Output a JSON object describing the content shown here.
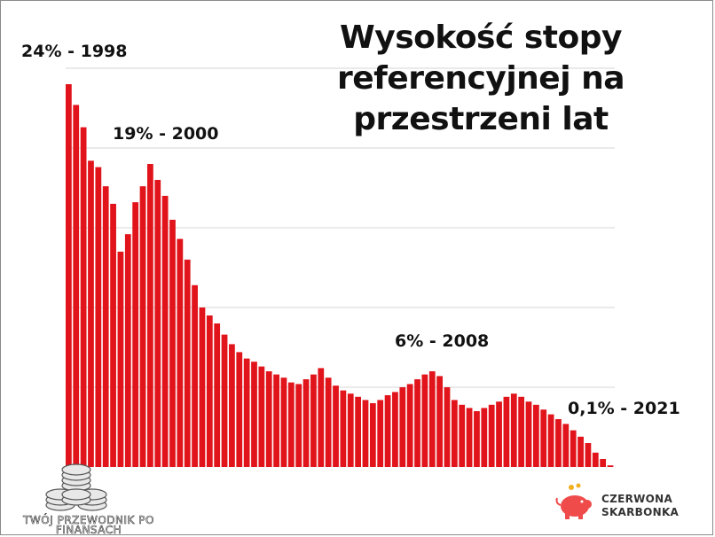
{
  "title_lines": [
    "Wysokość stopy",
    "referencyjnej na",
    "przestrzeni lat"
  ],
  "brand": {
    "line1": "CZERWONA",
    "line2": "SKARBONKA",
    "icon": "piggy-bank-icon"
  },
  "watermark": {
    "line1": "TWÓJ PRZEWODNIK PO",
    "line2": "FINANSACH",
    "icon": "coin-stack-icon"
  },
  "chart_data": {
    "type": "bar",
    "series_color": "#e1141b",
    "grid": true,
    "ylim": [
      0,
      25
    ],
    "gridlines": [
      5,
      10,
      15,
      20,
      25
    ],
    "values": [
      24.0,
      22.7,
      21.3,
      19.2,
      18.8,
      17.6,
      16.5,
      13.5,
      14.6,
      16.6,
      17.6,
      19.0,
      18.0,
      17.0,
      15.5,
      14.3,
      13.0,
      11.4,
      10.0,
      9.5,
      9.0,
      8.3,
      7.7,
      7.2,
      6.8,
      6.6,
      6.3,
      6.0,
      5.8,
      5.6,
      5.3,
      5.2,
      5.5,
      5.8,
      6.2,
      5.6,
      5.1,
      4.8,
      4.6,
      4.4,
      4.2,
      4.0,
      4.2,
      4.5,
      4.7,
      5.0,
      5.2,
      5.5,
      5.8,
      6.0,
      5.7,
      5.0,
      4.2,
      3.9,
      3.7,
      3.5,
      3.7,
      3.9,
      4.1,
      4.4,
      4.6,
      4.4,
      4.1,
      3.9,
      3.6,
      3.3,
      3.0,
      2.7,
      2.3,
      1.9,
      1.5,
      0.9,
      0.5,
      0.1
    ],
    "annotations": [
      {
        "text": "24% - 1998",
        "bar": 0
      },
      {
        "text": "19% - 2000",
        "bar": 11
      },
      {
        "text": "6% - 2008",
        "bar": 49
      },
      {
        "text": "0,1% - 2021",
        "bar": 73
      }
    ]
  }
}
